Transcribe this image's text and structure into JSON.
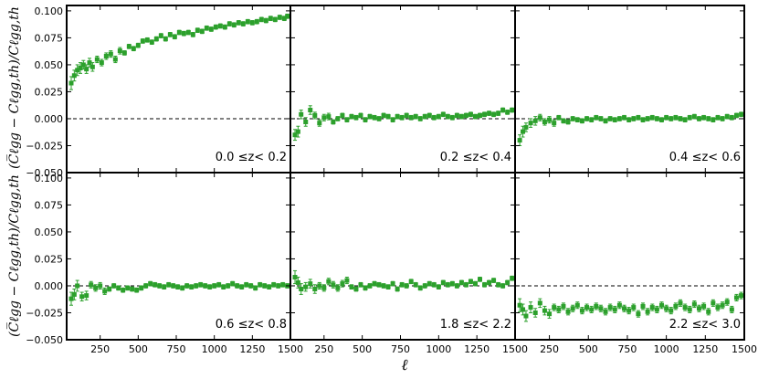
{
  "colors": {
    "marker": "#2ca02c",
    "axis": "#000000",
    "zero_line": "#000000"
  },
  "figure": {
    "xlabel": "ℓ",
    "ylabel": "(C̅ℓgg − Cℓgg,th)/Cℓgg,th"
  },
  "chart_data": {
    "type": "scatter",
    "layout": "2x3 grid, shared axes",
    "xlim": [
      30,
      1500
    ],
    "ylim": [
      -0.05,
      0.105
    ],
    "x_ticks": [
      250,
      500,
      750,
      1000,
      1250,
      1500
    ],
    "x_tick_labels": [
      "250",
      "500",
      "750",
      "1000",
      "1250",
      "1500"
    ],
    "y_ticks": [
      -0.05,
      -0.025,
      0.0,
      0.025,
      0.05,
      0.075,
      0.1
    ],
    "y_tick_labels": [
      "−0.050",
      "−0.025",
      "0.000",
      "0.025",
      "0.050",
      "0.075",
      "0.100"
    ],
    "reference_line": 0.0,
    "panels": [
      {
        "label": "0.0 ≤z< 0.2",
        "x": [
          60,
          80,
          100,
          120,
          140,
          160,
          180,
          200,
          230,
          260,
          290,
          320,
          350,
          380,
          410,
          440,
          470,
          500,
          530,
          560,
          590,
          620,
          650,
          680,
          710,
          740,
          770,
          800,
          830,
          860,
          890,
          920,
          950,
          980,
          1010,
          1040,
          1070,
          1100,
          1130,
          1160,
          1190,
          1220,
          1250,
          1280,
          1310,
          1340,
          1370,
          1400,
          1430,
          1460,
          1480
        ],
        "y": [
          0.033,
          0.04,
          0.045,
          0.047,
          0.05,
          0.046,
          0.052,
          0.048,
          0.055,
          0.052,
          0.058,
          0.06,
          0.055,
          0.063,
          0.061,
          0.067,
          0.065,
          0.068,
          0.072,
          0.073,
          0.071,
          0.074,
          0.077,
          0.074,
          0.078,
          0.076,
          0.08,
          0.079,
          0.08,
          0.078,
          0.082,
          0.081,
          0.084,
          0.083,
          0.085,
          0.086,
          0.085,
          0.088,
          0.087,
          0.089,
          0.088,
          0.09,
          0.089,
          0.09,
          0.092,
          0.091,
          0.093,
          0.092,
          0.094,
          0.093,
          0.095
        ],
        "yerr": [
          0.006,
          0.005,
          0.005,
          0.005,
          0.004,
          0.004,
          0.004,
          0.004,
          0.003,
          0.003,
          0.003,
          0.003,
          0.003,
          0.003,
          0.002,
          0.002,
          0.002,
          0.002,
          0.002,
          0.002,
          0.002,
          0.002,
          0.002,
          0.002,
          0.002,
          0.002,
          0.002,
          0.002,
          0.002,
          0.002,
          0.002,
          0.002,
          0.002,
          0.002,
          0.002,
          0.002,
          0.002,
          0.002,
          0.002,
          0.002,
          0.002,
          0.002,
          0.002,
          0.002,
          0.002,
          0.002,
          0.002,
          0.002,
          0.002,
          0.002,
          0.002
        ]
      },
      {
        "label": "0.2 ≤z< 0.4",
        "x": [
          60,
          80,
          100,
          130,
          160,
          190,
          220,
          250,
          280,
          310,
          340,
          370,
          400,
          430,
          460,
          490,
          520,
          550,
          580,
          610,
          640,
          670,
          700,
          730,
          760,
          790,
          820,
          850,
          880,
          910,
          940,
          970,
          1000,
          1030,
          1060,
          1090,
          1120,
          1150,
          1180,
          1210,
          1240,
          1270,
          1300,
          1330,
          1360,
          1390,
          1420,
          1450,
          1480
        ],
        "y": [
          -0.015,
          -0.012,
          0.004,
          -0.003,
          0.008,
          0.003,
          -0.004,
          0.001,
          0.002,
          -0.003,
          0.0,
          0.003,
          -0.001,
          0.002,
          0.001,
          0.003,
          -0.001,
          0.002,
          0.001,
          0.0,
          0.003,
          0.002,
          -0.001,
          0.002,
          0.001,
          0.003,
          0.001,
          0.002,
          0.0,
          0.002,
          0.003,
          0.001,
          0.002,
          0.004,
          0.002,
          0.001,
          0.003,
          0.002,
          0.003,
          0.004,
          0.002,
          0.003,
          0.004,
          0.005,
          0.004,
          0.005,
          0.008,
          0.006,
          0.008
        ],
        "yerr": [
          0.005,
          0.005,
          0.004,
          0.004,
          0.004,
          0.003,
          0.003,
          0.003,
          0.003,
          0.002,
          0.002,
          0.002,
          0.002,
          0.002,
          0.002,
          0.002,
          0.002,
          0.002,
          0.002,
          0.002,
          0.002,
          0.002,
          0.002,
          0.002,
          0.002,
          0.002,
          0.002,
          0.002,
          0.002,
          0.002,
          0.002,
          0.002,
          0.002,
          0.002,
          0.002,
          0.002,
          0.002,
          0.002,
          0.002,
          0.002,
          0.002,
          0.002,
          0.002,
          0.002,
          0.002,
          0.002,
          0.002,
          0.002,
          0.002
        ]
      },
      {
        "label": "0.4 ≤z< 0.6",
        "x": [
          60,
          80,
          100,
          130,
          160,
          190,
          220,
          250,
          280,
          310,
          340,
          370,
          400,
          430,
          460,
          490,
          520,
          550,
          580,
          610,
          640,
          670,
          700,
          730,
          760,
          790,
          820,
          850,
          880,
          910,
          940,
          970,
          1000,
          1030,
          1060,
          1090,
          1120,
          1150,
          1180,
          1210,
          1240,
          1270,
          1300,
          1330,
          1360,
          1390,
          1420,
          1450,
          1480
        ],
        "y": [
          -0.02,
          -0.012,
          -0.008,
          -0.004,
          -0.002,
          0.001,
          -0.003,
          -0.001,
          -0.004,
          0.001,
          -0.002,
          -0.003,
          0.0,
          -0.001,
          -0.002,
          0.0,
          -0.001,
          0.001,
          0.0,
          -0.002,
          0.0,
          -0.001,
          0.0,
          0.001,
          -0.001,
          0.0,
          0.001,
          -0.001,
          0.0,
          0.001,
          0.0,
          -0.001,
          0.001,
          0.0,
          0.001,
          0.0,
          -0.001,
          0.001,
          0.002,
          0.0,
          0.001,
          0.0,
          -0.001,
          0.001,
          0.0,
          0.002,
          0.001,
          0.003,
          0.004
        ],
        "yerr": [
          0.005,
          0.005,
          0.004,
          0.004,
          0.004,
          0.003,
          0.003,
          0.003,
          0.003,
          0.002,
          0.002,
          0.002,
          0.002,
          0.002,
          0.002,
          0.002,
          0.002,
          0.002,
          0.002,
          0.002,
          0.002,
          0.002,
          0.002,
          0.002,
          0.002,
          0.002,
          0.002,
          0.002,
          0.002,
          0.002,
          0.002,
          0.002,
          0.002,
          0.002,
          0.002,
          0.002,
          0.002,
          0.002,
          0.002,
          0.002,
          0.002,
          0.002,
          0.002,
          0.002,
          0.002,
          0.002,
          0.002,
          0.002,
          0.002
        ]
      },
      {
        "label": "0.6 ≤z< 0.8",
        "x": [
          60,
          80,
          100,
          130,
          160,
          190,
          220,
          250,
          280,
          310,
          340,
          370,
          400,
          430,
          460,
          490,
          520,
          550,
          580,
          610,
          640,
          670,
          700,
          730,
          760,
          790,
          820,
          850,
          880,
          910,
          940,
          970,
          1000,
          1030,
          1060,
          1090,
          1120,
          1150,
          1180,
          1210,
          1240,
          1270,
          1300,
          1330,
          1360,
          1390,
          1420,
          1450,
          1480
        ],
        "y": [
          -0.012,
          -0.008,
          0.0,
          -0.01,
          -0.009,
          0.001,
          -0.002,
          0.0,
          -0.005,
          -0.003,
          0.0,
          -0.002,
          -0.004,
          -0.002,
          -0.003,
          -0.004,
          -0.002,
          0.0,
          0.002,
          0.001,
          0.0,
          -0.001,
          0.001,
          0.0,
          -0.001,
          -0.002,
          0.0,
          -0.001,
          0.0,
          0.001,
          0.0,
          -0.001,
          0.0,
          0.001,
          -0.001,
          0.0,
          0.002,
          0.0,
          -0.001,
          0.001,
          0.0,
          -0.002,
          0.001,
          0.0,
          -0.001,
          0.001,
          0.0,
          0.001,
          0.0
        ],
        "yerr": [
          0.006,
          0.005,
          0.005,
          0.004,
          0.004,
          0.003,
          0.003,
          0.003,
          0.003,
          0.002,
          0.002,
          0.002,
          0.002,
          0.002,
          0.002,
          0.002,
          0.002,
          0.002,
          0.002,
          0.002,
          0.002,
          0.002,
          0.002,
          0.002,
          0.002,
          0.002,
          0.002,
          0.002,
          0.002,
          0.002,
          0.002,
          0.002,
          0.002,
          0.002,
          0.002,
          0.002,
          0.002,
          0.002,
          0.002,
          0.002,
          0.002,
          0.002,
          0.002,
          0.002,
          0.002,
          0.002,
          0.002,
          0.002,
          0.002
        ]
      },
      {
        "label": "1.8 ≤z< 2.2",
        "x": [
          60,
          80,
          100,
          130,
          160,
          190,
          220,
          250,
          280,
          310,
          340,
          370,
          400,
          430,
          460,
          490,
          520,
          550,
          580,
          610,
          640,
          670,
          700,
          730,
          760,
          790,
          820,
          850,
          880,
          910,
          940,
          970,
          1000,
          1030,
          1060,
          1090,
          1120,
          1150,
          1180,
          1210,
          1240,
          1270,
          1300,
          1330,
          1360,
          1390,
          1420,
          1450,
          1480
        ],
        "y": [
          0.008,
          0.003,
          -0.003,
          -0.001,
          0.002,
          -0.003,
          0.0,
          -0.002,
          0.004,
          0.001,
          -0.002,
          0.002,
          0.005,
          -0.001,
          -0.003,
          0.001,
          -0.002,
          0.0,
          0.002,
          0.001,
          0.0,
          -0.001,
          0.002,
          -0.003,
          0.001,
          0.0,
          0.004,
          0.001,
          -0.002,
          0.0,
          0.002,
          0.001,
          -0.001,
          0.003,
          0.001,
          0.002,
          0.0,
          0.003,
          0.001,
          0.004,
          0.002,
          0.006,
          0.001,
          0.003,
          0.005,
          0.001,
          0.0,
          0.003,
          0.007
        ],
        "yerr": [
          0.006,
          0.005,
          0.005,
          0.004,
          0.004,
          0.004,
          0.003,
          0.003,
          0.003,
          0.003,
          0.003,
          0.003,
          0.003,
          0.002,
          0.002,
          0.002,
          0.002,
          0.002,
          0.002,
          0.002,
          0.002,
          0.002,
          0.002,
          0.002,
          0.002,
          0.002,
          0.002,
          0.002,
          0.002,
          0.002,
          0.002,
          0.002,
          0.002,
          0.002,
          0.002,
          0.002,
          0.002,
          0.002,
          0.002,
          0.002,
          0.002,
          0.002,
          0.002,
          0.002,
          0.002,
          0.002,
          0.002,
          0.002,
          0.002
        ]
      },
      {
        "label": "2.2 ≤z< 3.0",
        "x": [
          60,
          80,
          100,
          130,
          160,
          190,
          220,
          250,
          280,
          310,
          340,
          370,
          400,
          430,
          460,
          490,
          520,
          550,
          580,
          610,
          640,
          670,
          700,
          730,
          760,
          790,
          820,
          850,
          880,
          910,
          940,
          970,
          1000,
          1030,
          1060,
          1090,
          1120,
          1150,
          1180,
          1210,
          1240,
          1270,
          1300,
          1330,
          1360,
          1390,
          1420,
          1450,
          1480
        ],
        "y": [
          -0.018,
          -0.022,
          -0.028,
          -0.02,
          -0.025,
          -0.016,
          -0.023,
          -0.026,
          -0.02,
          -0.022,
          -0.019,
          -0.024,
          -0.021,
          -0.018,
          -0.023,
          -0.02,
          -0.022,
          -0.019,
          -0.021,
          -0.024,
          -0.02,
          -0.022,
          -0.018,
          -0.021,
          -0.023,
          -0.02,
          -0.026,
          -0.019,
          -0.024,
          -0.02,
          -0.022,
          -0.018,
          -0.021,
          -0.023,
          -0.019,
          -0.016,
          -0.02,
          -0.022,
          -0.017,
          -0.021,
          -0.019,
          -0.024,
          -0.016,
          -0.02,
          -0.018,
          -0.015,
          -0.022,
          -0.011,
          -0.009
        ],
        "yerr": [
          0.006,
          0.005,
          0.005,
          0.005,
          0.004,
          0.004,
          0.004,
          0.004,
          0.003,
          0.003,
          0.003,
          0.003,
          0.003,
          0.003,
          0.003,
          0.003,
          0.003,
          0.003,
          0.003,
          0.003,
          0.003,
          0.003,
          0.003,
          0.003,
          0.003,
          0.003,
          0.003,
          0.003,
          0.003,
          0.003,
          0.003,
          0.003,
          0.003,
          0.003,
          0.003,
          0.003,
          0.003,
          0.003,
          0.003,
          0.003,
          0.003,
          0.003,
          0.003,
          0.003,
          0.003,
          0.003,
          0.003,
          0.003,
          0.003
        ]
      }
    ]
  }
}
